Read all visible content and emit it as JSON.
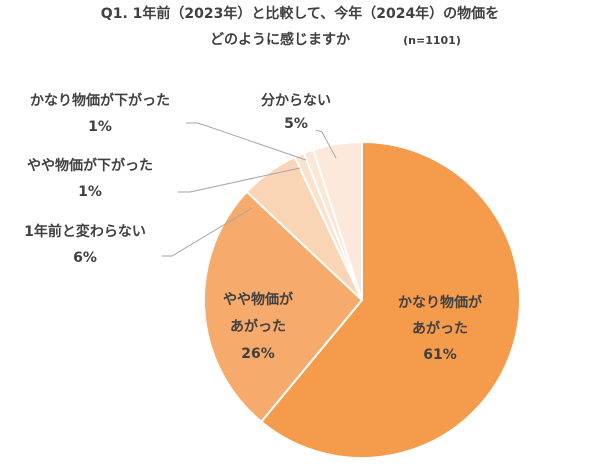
{
  "chart_data": {
    "type": "pie",
    "title": [
      "Q1. 1年前（2023年）と比較して、今年（2024年）の物価を",
      "どのように感じますか"
    ],
    "subtitle": "(n=1101)",
    "categories": [
      [
        "かなり物価が",
        "あがった"
      ],
      [
        "やや物価が",
        "あがった"
      ],
      [
        "1年前と変わらない"
      ],
      [
        "やや物価が下がった"
      ],
      [
        "かなり物価が下がった"
      ],
      [
        "分からない"
      ]
    ],
    "values": [
      61,
      26,
      6,
      1,
      1,
      5
    ],
    "value_labels": [
      "61%",
      "26%",
      "6%",
      "1%",
      "1%",
      "5%"
    ],
    "colors": [
      "#f59b4c",
      "#f6ab6c",
      "#fad5b5",
      "#fbe2cd",
      "#fce6d6",
      "#fde9dc"
    ]
  }
}
